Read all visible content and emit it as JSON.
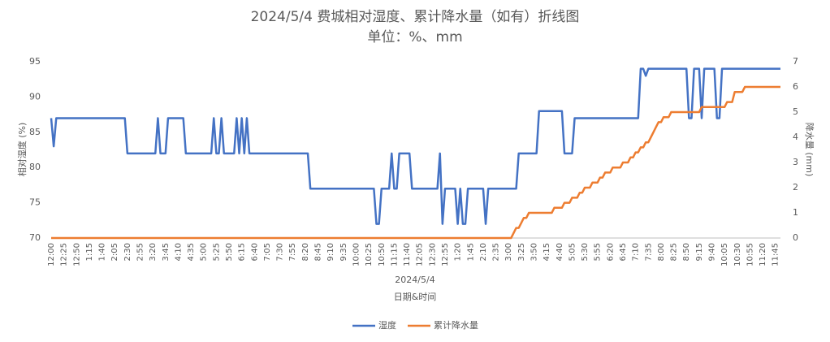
{
  "chart_data": {
    "type": "line",
    "title": "2024/5/4 费城相对湿度、累计降水量（如有）折线图",
    "subtitle": "单位：%、mm",
    "y_label": "相对湿度 (%)",
    "y2_label": "降水量 (mm)",
    "x_group_label": "2024/5/4",
    "x_label": "日期&时间",
    "ylim": [
      70,
      95
    ],
    "yticks": [
      70,
      75,
      80,
      85,
      90,
      95
    ],
    "y2lim": [
      0,
      7
    ],
    "y2ticks": [
      0,
      1,
      2,
      3,
      4,
      5,
      6,
      7
    ],
    "grid": false,
    "legend": "bottom",
    "categories": [
      "12:00",
      null,
      null,
      null,
      null,
      "12:25",
      null,
      null,
      null,
      null,
      "12:50",
      null,
      null,
      null,
      null,
      "1:15",
      null,
      null,
      null,
      null,
      "1:40",
      null,
      null,
      null,
      null,
      "2:05",
      null,
      null,
      null,
      null,
      "2:30",
      null,
      null,
      null,
      null,
      "2:55",
      null,
      null,
      null,
      null,
      "3:20",
      null,
      null,
      null,
      null,
      "3:45",
      null,
      null,
      null,
      null,
      "4:10",
      null,
      null,
      null,
      null,
      "4:35",
      null,
      null,
      null,
      null,
      "5:00",
      null,
      null,
      null,
      null,
      "5:25",
      null,
      null,
      null,
      null,
      "5:50",
      null,
      null,
      null,
      null,
      "6:15",
      null,
      null,
      null,
      null,
      "6:40",
      null,
      null,
      null,
      null,
      "7:05",
      null,
      null,
      null,
      null,
      "7:30",
      null,
      null,
      null,
      null,
      "7:55",
      null,
      null,
      null,
      null,
      "8:20",
      null,
      null,
      null,
      null,
      "8:45",
      null,
      null,
      null,
      null,
      "9:10",
      null,
      null,
      null,
      null,
      "9:35",
      null,
      null,
      null,
      null,
      "10:00",
      null,
      null,
      null,
      null,
      "10:25",
      null,
      null,
      null,
      null,
      "10:50",
      null,
      null,
      null,
      null,
      "11:15",
      null,
      null,
      null,
      null,
      "11:40",
      null,
      null,
      null,
      null,
      "12:05",
      null,
      null,
      null,
      null,
      "12:30",
      null,
      null,
      null,
      null,
      "12:55",
      null,
      null,
      null,
      null,
      "1:20",
      null,
      null,
      null,
      null,
      "1:45",
      null,
      null,
      null,
      null,
      "2:10",
      null,
      null,
      null,
      null,
      "2:35",
      null,
      null,
      null,
      null,
      "3:00",
      null,
      null,
      null,
      null,
      "3:25",
      null,
      null,
      null,
      null,
      "3:50",
      null,
      null,
      null,
      null,
      "4:15",
      null,
      null,
      null,
      null,
      "4:40",
      null,
      null,
      null,
      null,
      "5:05",
      null,
      null,
      null,
      null,
      "5:30",
      null,
      null,
      null,
      null,
      "5:55",
      null,
      null,
      null,
      null,
      "6:20",
      null,
      null,
      null,
      null,
      "6:45",
      null,
      null,
      null,
      null,
      "7:10",
      null,
      null,
      null,
      null,
      "7:35",
      null,
      null,
      null,
      null,
      "8:00",
      null,
      null,
      null,
      null,
      "8:25",
      null,
      null,
      null,
      null,
      "8:50",
      null,
      null,
      null,
      null,
      "9:15",
      null,
      null,
      null,
      null,
      "9:40",
      null,
      null,
      null,
      null,
      "10:05",
      null,
      null,
      null,
      null,
      "10:30",
      null,
      null,
      null,
      null,
      "10:55",
      null,
      null,
      null,
      null,
      "11:20",
      null,
      null,
      null,
      null,
      "11:45",
      null,
      null
    ],
    "series": [
      {
        "name": "湿度",
        "color": "#4472c4",
        "values": [
          87,
          83,
          87,
          87,
          87,
          87,
          87,
          87,
          87,
          87,
          87,
          87,
          87,
          87,
          87,
          87,
          87,
          87,
          87,
          87,
          87,
          87,
          87,
          87,
          87,
          87,
          87,
          87,
          87,
          87,
          82,
          82,
          82,
          82,
          82,
          82,
          82,
          82,
          82,
          82,
          82,
          82,
          87,
          82,
          82,
          82,
          87,
          87,
          87,
          87,
          87,
          87,
          87,
          82,
          82,
          82,
          82,
          82,
          82,
          82,
          82,
          82,
          82,
          82,
          87,
          82,
          82,
          87,
          82,
          82,
          82,
          82,
          82,
          87,
          82,
          87,
          82,
          87,
          82,
          82,
          82,
          82,
          82,
          82,
          82,
          82,
          82,
          82,
          82,
          82,
          82,
          82,
          82,
          82,
          82,
          82,
          82,
          82,
          82,
          82,
          82,
          82,
          77,
          77,
          77,
          77,
          77,
          77,
          77,
          77,
          77,
          77,
          77,
          77,
          77,
          77,
          77,
          77,
          77,
          77,
          77,
          77,
          77,
          77,
          77,
          77,
          77,
          77,
          72,
          72,
          77,
          77,
          77,
          77,
          82,
          77,
          77,
          82,
          82,
          82,
          82,
          82,
          77,
          77,
          77,
          77,
          77,
          77,
          77,
          77,
          77,
          77,
          77,
          82,
          72,
          77,
          77,
          77,
          77,
          77,
          72,
          77,
          72,
          72,
          77,
          77,
          77,
          77,
          77,
          77,
          77,
          72,
          77,
          77,
          77,
          77,
          77,
          77,
          77,
          77,
          77,
          77,
          77,
          77,
          82,
          82,
          82,
          82,
          82,
          82,
          82,
          82,
          88,
          88,
          88,
          88,
          88,
          88,
          88,
          88,
          88,
          88,
          82,
          82,
          82,
          82,
          87,
          87,
          87,
          87,
          87,
          87,
          87,
          87,
          87,
          87,
          87,
          87,
          87,
          87,
          87,
          87,
          87,
          87,
          87,
          87,
          87,
          87,
          87,
          87,
          87,
          87,
          94,
          94,
          93,
          94,
          94,
          94,
          94,
          94,
          94,
          94,
          94,
          94,
          94,
          94,
          94,
          94,
          94,
          94,
          94,
          87,
          87,
          94,
          94,
          94,
          87,
          94,
          94,
          94,
          94,
          94,
          87,
          87,
          94,
          94,
          94,
          94,
          94,
          94,
          94,
          94,
          94,
          94,
          94,
          94,
          94,
          94,
          94,
          94,
          94,
          94,
          94,
          94,
          94,
          94,
          94,
          94
        ]
      },
      {
        "name": "累计降水量",
        "color": "#ed7d31",
        "axis": "y2",
        "values": [
          0,
          0,
          0,
          0,
          0,
          0,
          0,
          0,
          0,
          0,
          0,
          0,
          0,
          0,
          0,
          0,
          0,
          0,
          0,
          0,
          0,
          0,
          0,
          0,
          0,
          0,
          0,
          0,
          0,
          0,
          0,
          0,
          0,
          0,
          0,
          0,
          0,
          0,
          0,
          0,
          0,
          0,
          0,
          0,
          0,
          0,
          0,
          0,
          0,
          0,
          0,
          0,
          0,
          0,
          0,
          0,
          0,
          0,
          0,
          0,
          0,
          0,
          0,
          0,
          0,
          0,
          0,
          0,
          0,
          0,
          0,
          0,
          0,
          0,
          0,
          0,
          0,
          0,
          0,
          0,
          0,
          0,
          0,
          0,
          0,
          0,
          0,
          0,
          0,
          0,
          0,
          0,
          0,
          0,
          0,
          0,
          0,
          0,
          0,
          0,
          0,
          0,
          0,
          0,
          0,
          0,
          0,
          0,
          0,
          0,
          0,
          0,
          0,
          0,
          0,
          0,
          0,
          0,
          0,
          0,
          0,
          0,
          0,
          0,
          0,
          0,
          0,
          0,
          0,
          0,
          0,
          0,
          0,
          0,
          0,
          0,
          0,
          0,
          0,
          0,
          0,
          0,
          0,
          0,
          0,
          0,
          0,
          0,
          0,
          0,
          0,
          0,
          0,
          0,
          0,
          0,
          0,
          0,
          0,
          0,
          0,
          0,
          0,
          0,
          0,
          0,
          0,
          0,
          0,
          0,
          0,
          0,
          0,
          0,
          0,
          0,
          0,
          0,
          0,
          0,
          0,
          0,
          0.2,
          0.4,
          0.4,
          0.6,
          0.8,
          0.8,
          1.0,
          1.0,
          1.0,
          1.0,
          1.0,
          1.0,
          1.0,
          1.0,
          1.0,
          1.0,
          1.2,
          1.2,
          1.2,
          1.2,
          1.4,
          1.4,
          1.4,
          1.6,
          1.6,
          1.6,
          1.8,
          1.8,
          2.0,
          2.0,
          2.0,
          2.2,
          2.2,
          2.2,
          2.4,
          2.4,
          2.6,
          2.6,
          2.6,
          2.8,
          2.8,
          2.8,
          2.8,
          3.0,
          3.0,
          3.0,
          3.2,
          3.2,
          3.4,
          3.4,
          3.6,
          3.6,
          3.8,
          3.8,
          4.0,
          4.2,
          4.4,
          4.6,
          4.6,
          4.8,
          4.8,
          4.8,
          5.0,
          5.0,
          5.0,
          5.0,
          5.0,
          5.0,
          5.0,
          5.0,
          5.0,
          5.0,
          5.0,
          5.0,
          5.2,
          5.2,
          5.2,
          5.2,
          5.2,
          5.2,
          5.2,
          5.2,
          5.2,
          5.2,
          5.4,
          5.4,
          5.4,
          5.8,
          5.8,
          5.8,
          5.8,
          6.0,
          6.0,
          6.0,
          6.0,
          6.0,
          6.0,
          6.0,
          6.0,
          6.0,
          6.0,
          6.0,
          6.0,
          6.0,
          6.0,
          6.0
        ]
      }
    ]
  }
}
